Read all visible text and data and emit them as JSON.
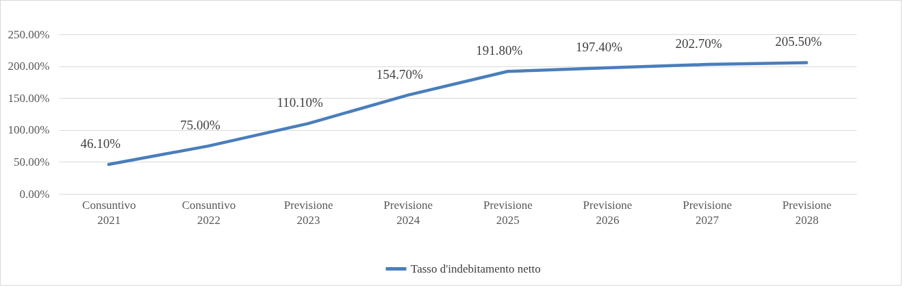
{
  "chart_data": {
    "type": "line",
    "categories": [
      "Consuntivo 2021",
      "Consuntivo 2022",
      "Previsione 2023",
      "Previsione 2024",
      "Previsione 2025",
      "Previsione 2026",
      "Previsione 2027",
      "Previsione 2028"
    ],
    "series": [
      {
        "name": "Tasso d'indebitamento netto",
        "color": "#4a7ebb",
        "values": [
          46.1,
          75.0,
          110.1,
          154.7,
          191.8,
          197.4,
          202.7,
          205.5
        ],
        "value_labels": [
          "46.10%",
          "75.00%",
          "110.10%",
          "154.70%",
          "191.80%",
          "197.40%",
          "202.70%",
          "205.50%"
        ]
      }
    ],
    "ylim": [
      0,
      250
    ],
    "yticks": [
      {
        "value": 0,
        "label": "0.00%"
      },
      {
        "value": 50,
        "label": "50.00%"
      },
      {
        "value": 100,
        "label": "100.00%"
      },
      {
        "value": 150,
        "label": "150.00%"
      },
      {
        "value": 200,
        "label": "200.00%"
      },
      {
        "value": 250,
        "label": "250.00%"
      }
    ],
    "grid": "y",
    "legend": "bottom",
    "marker": "none",
    "line_style": "solid"
  }
}
